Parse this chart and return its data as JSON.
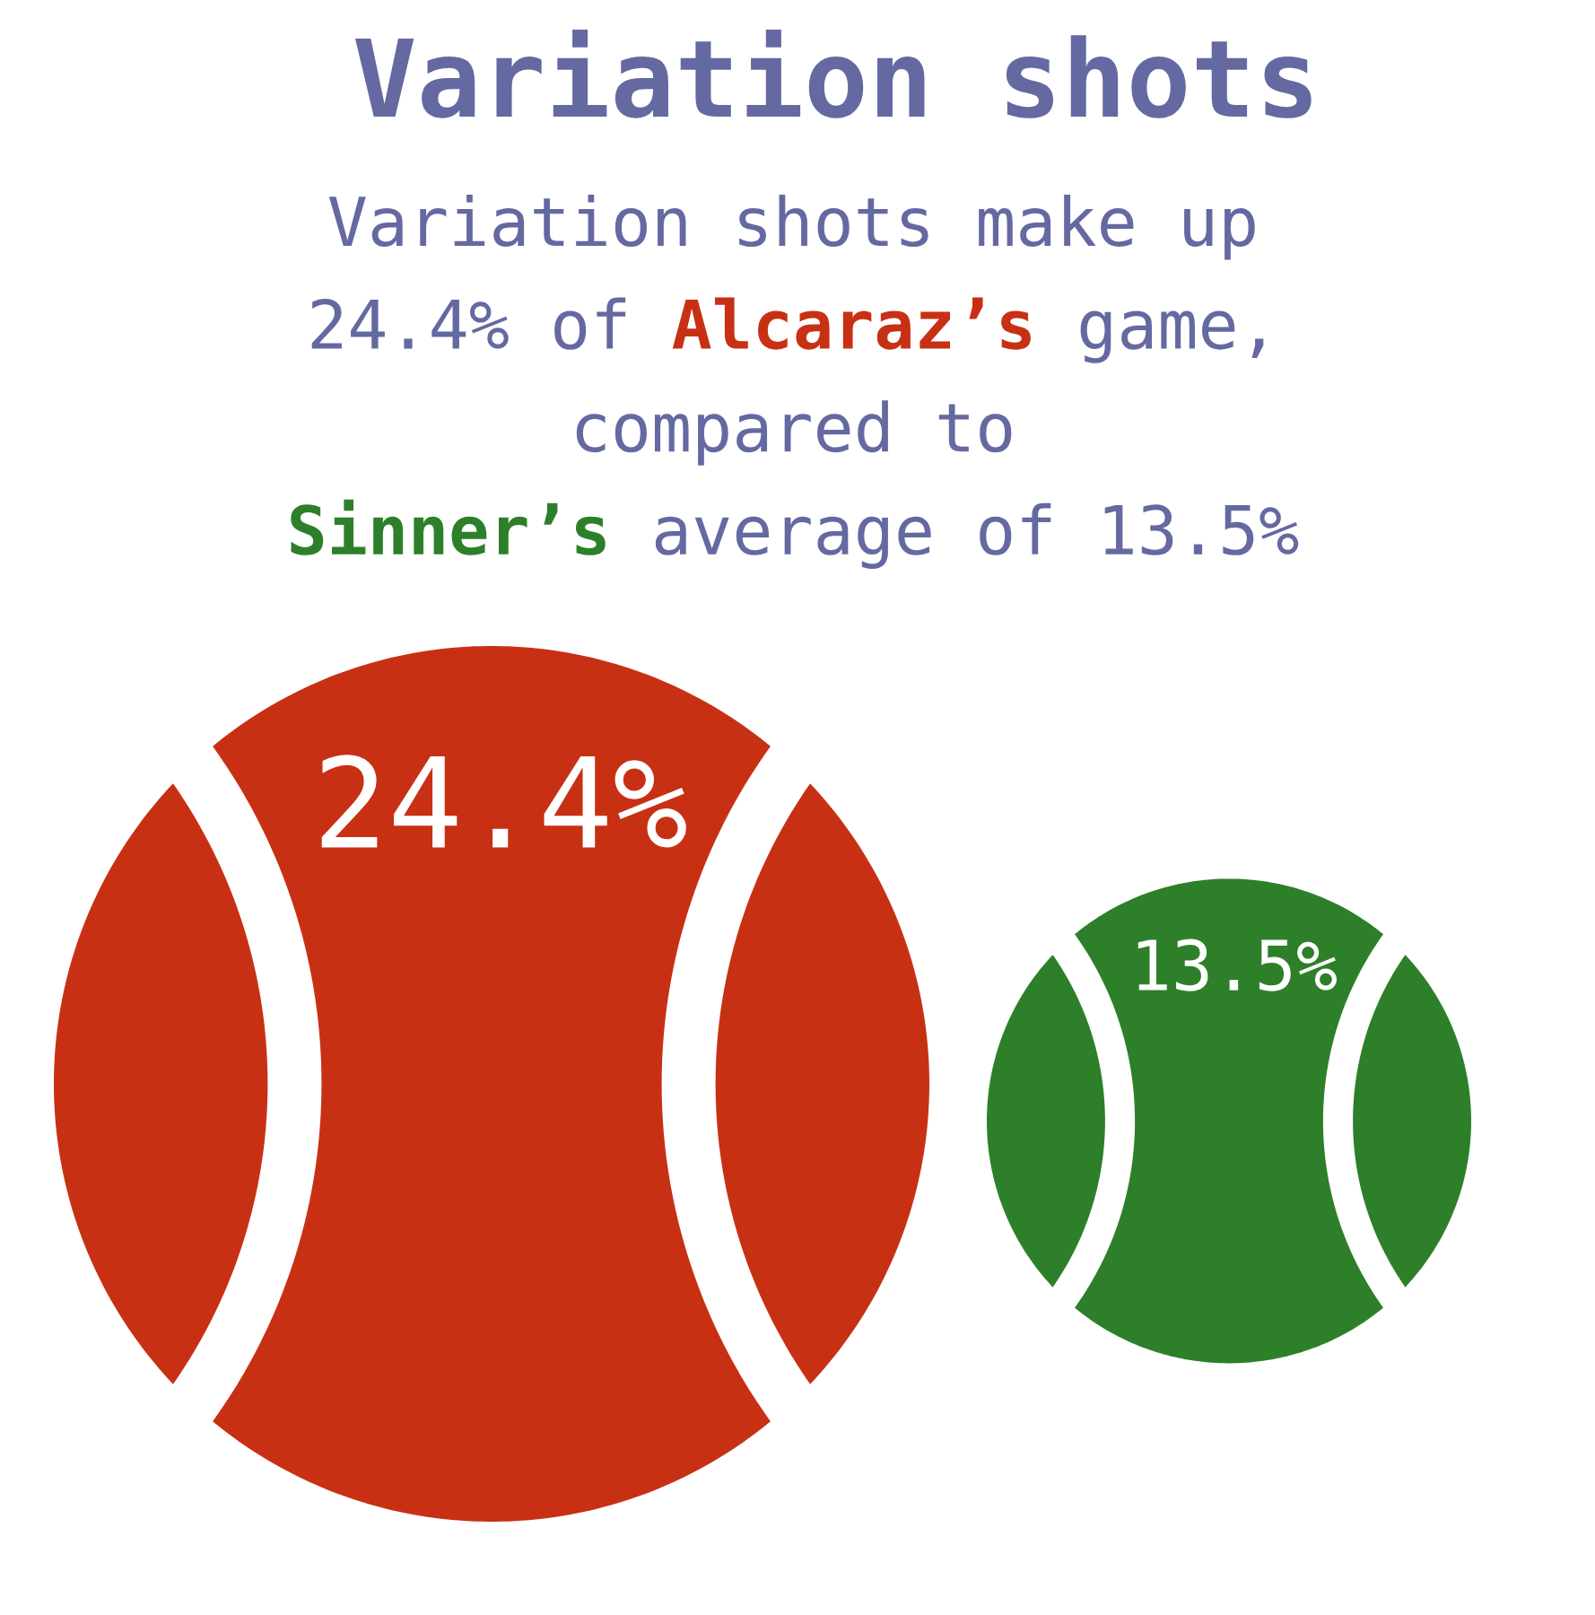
{
  "chart_data": {
    "type": "other",
    "title": "Variation shots",
    "subtitle": "Variation shots make up\n24.4% of Alcaraz’s game,\ncompared to\nSinner’s average of 13.5%",
    "categories": [
      null,
      null
    ],
    "values": [
      24.4,
      13.5
    ],
    "colors": [
      "#c83014",
      "#2d8029"
    ],
    "value_labels": [
      "24.4%",
      "13.5%"
    ]
  }
}
